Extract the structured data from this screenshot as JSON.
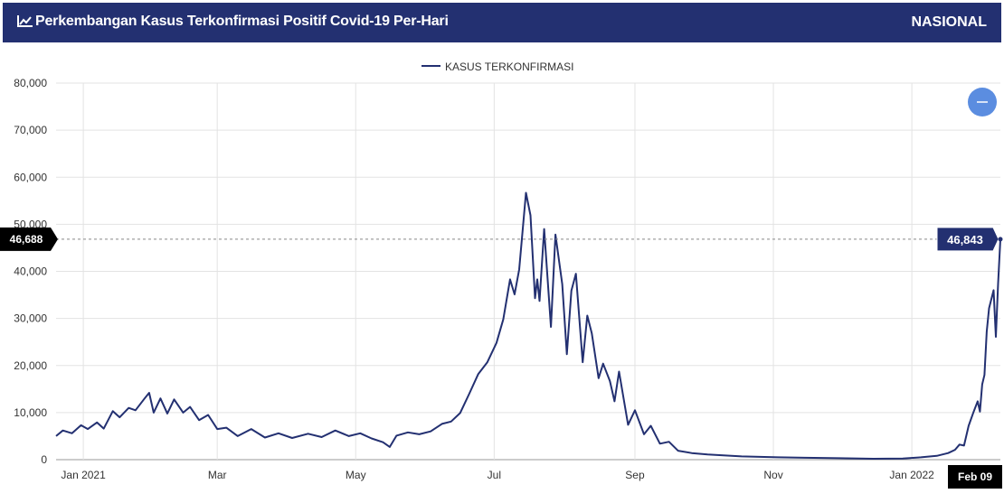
{
  "header": {
    "title": "Perkembangan Kasus Terkonfirmasi Positif Covid-19 Per-Hari",
    "region_label": "NASIONAL",
    "icon": "line-chart-icon",
    "background": "#233071"
  },
  "chart_controls": {
    "zoom_out_icon": "minus-icon",
    "zoom_out_color": "#5b8de0"
  },
  "chart_data": {
    "type": "line",
    "title": "Perkembangan Kasus Terkonfirmasi Positif Covid-19 Per-Hari",
    "legend": {
      "entries": [
        "KASUS TERKONFIRMASI"
      ],
      "placement": "top-center"
    },
    "xlabel": "",
    "ylabel": "",
    "ylim": [
      0,
      80000
    ],
    "xlim": [
      "2020-12-20",
      "2022-02-09"
    ],
    "y_ticks": [
      "0",
      "10,000",
      "20,000",
      "30,000",
      "40,000",
      "50,000",
      "60,000",
      "70,000",
      "80,000"
    ],
    "x_ticks": [
      "Jan 2021",
      "Mar",
      "May",
      "Jul",
      "Sep",
      "Nov",
      "Jan 2022"
    ],
    "x_tick_dates": [
      "2021-01-01",
      "2021-03-01",
      "2021-05-01",
      "2021-07-01",
      "2021-09-01",
      "2021-11-01",
      "2022-01-01"
    ],
    "grid": true,
    "series_color": "#233071",
    "crosshair": {
      "y_label": "46,688",
      "x_label": "Feb 09",
      "value_label": "46,843"
    },
    "series": [
      {
        "name": "KASUS TERKONFIRMASI",
        "points": [
          [
            "2020-12-20",
            5000
          ],
          [
            "2020-12-23",
            6200
          ],
          [
            "2020-12-27",
            5600
          ],
          [
            "2020-12-31",
            7300
          ],
          [
            "2021-01-03",
            6500
          ],
          [
            "2021-01-07",
            7900
          ],
          [
            "2021-01-10",
            6600
          ],
          [
            "2021-01-14",
            10300
          ],
          [
            "2021-01-17",
            9000
          ],
          [
            "2021-01-21",
            11000
          ],
          [
            "2021-01-24",
            10500
          ],
          [
            "2021-01-28",
            13000
          ],
          [
            "2021-01-30",
            14200
          ],
          [
            "2021-02-01",
            10000
          ],
          [
            "2021-02-04",
            13000
          ],
          [
            "2021-02-07",
            9800
          ],
          [
            "2021-02-10",
            12800
          ],
          [
            "2021-02-14",
            10000
          ],
          [
            "2021-02-17",
            11200
          ],
          [
            "2021-02-21",
            8400
          ],
          [
            "2021-02-25",
            9500
          ],
          [
            "2021-03-01",
            6500
          ],
          [
            "2021-03-05",
            6800
          ],
          [
            "2021-03-10",
            5000
          ],
          [
            "2021-03-16",
            6500
          ],
          [
            "2021-03-22",
            4700
          ],
          [
            "2021-03-28",
            5600
          ],
          [
            "2021-04-03",
            4600
          ],
          [
            "2021-04-10",
            5500
          ],
          [
            "2021-04-16",
            4800
          ],
          [
            "2021-04-22",
            6200
          ],
          [
            "2021-04-28",
            5000
          ],
          [
            "2021-05-03",
            5600
          ],
          [
            "2021-05-08",
            4500
          ],
          [
            "2021-05-13",
            3700
          ],
          [
            "2021-05-16",
            2700
          ],
          [
            "2021-05-19",
            5100
          ],
          [
            "2021-05-24",
            5800
          ],
          [
            "2021-05-29",
            5400
          ],
          [
            "2021-06-03",
            6000
          ],
          [
            "2021-06-08",
            7600
          ],
          [
            "2021-06-12",
            8100
          ],
          [
            "2021-06-16",
            9900
          ],
          [
            "2021-06-20",
            14000
          ],
          [
            "2021-06-24",
            18200
          ],
          [
            "2021-06-28",
            20700
          ],
          [
            "2021-07-02",
            24800
          ],
          [
            "2021-07-05",
            29800
          ],
          [
            "2021-07-08",
            38300
          ],
          [
            "2021-07-10",
            35100
          ],
          [
            "2021-07-12",
            40400
          ],
          [
            "2021-07-15",
            56700
          ],
          [
            "2021-07-17",
            51900
          ],
          [
            "2021-07-19",
            34300
          ],
          [
            "2021-07-20",
            38300
          ],
          [
            "2021-07-21",
            33700
          ],
          [
            "2021-07-23",
            49000
          ],
          [
            "2021-07-26",
            28200
          ],
          [
            "2021-07-28",
            47800
          ],
          [
            "2021-07-31",
            37300
          ],
          [
            "2021-08-02",
            22400
          ],
          [
            "2021-08-04",
            35900
          ],
          [
            "2021-08-06",
            39500
          ],
          [
            "2021-08-09",
            20700
          ],
          [
            "2021-08-11",
            30600
          ],
          [
            "2021-08-13",
            26800
          ],
          [
            "2021-08-16",
            17300
          ],
          [
            "2021-08-18",
            20400
          ],
          [
            "2021-08-21",
            16700
          ],
          [
            "2021-08-23",
            12400
          ],
          [
            "2021-08-25",
            18700
          ],
          [
            "2021-08-29",
            7400
          ],
          [
            "2021-09-01",
            10500
          ],
          [
            "2021-09-05",
            5400
          ],
          [
            "2021-09-08",
            7200
          ],
          [
            "2021-09-12",
            3400
          ],
          [
            "2021-09-16",
            3800
          ],
          [
            "2021-09-20",
            1900
          ],
          [
            "2021-09-26",
            1400
          ],
          [
            "2021-10-03",
            1100
          ],
          [
            "2021-10-10",
            900
          ],
          [
            "2021-10-18",
            700
          ],
          [
            "2021-10-26",
            600
          ],
          [
            "2021-11-03",
            500
          ],
          [
            "2021-11-15",
            400
          ],
          [
            "2021-11-30",
            300
          ],
          [
            "2021-12-15",
            200
          ],
          [
            "2021-12-28",
            250
          ],
          [
            "2022-01-05",
            500
          ],
          [
            "2022-01-12",
            800
          ],
          [
            "2022-01-17",
            1400
          ],
          [
            "2022-01-20",
            2100
          ],
          [
            "2022-01-22",
            3200
          ],
          [
            "2022-01-24",
            3000
          ],
          [
            "2022-01-26",
            7200
          ],
          [
            "2022-01-28",
            9900
          ],
          [
            "2022-01-30",
            12400
          ],
          [
            "2022-01-31",
            10200
          ],
          [
            "2022-02-01",
            16000
          ],
          [
            "2022-02-02",
            18000
          ],
          [
            "2022-02-03",
            27200
          ],
          [
            "2022-02-04",
            32200
          ],
          [
            "2022-02-06",
            36000
          ],
          [
            "2022-02-07",
            26100
          ],
          [
            "2022-02-08",
            37500
          ],
          [
            "2022-02-09",
            46843
          ]
        ]
      }
    ]
  }
}
